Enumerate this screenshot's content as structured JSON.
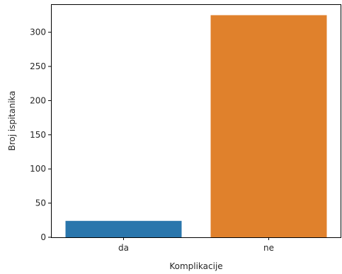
{
  "chart_data": {
    "type": "bar",
    "categories": [
      "da",
      "ne"
    ],
    "values": [
      24,
      325
    ],
    "colors": [
      "#1f77b4",
      "#ff7f0e"
    ],
    "bar_colors_rendered": [
      "#2a76ac",
      "#e0812c"
    ],
    "title": "",
    "xlabel": "Komplikacije",
    "ylabel": "Broj ispitanika",
    "ylim": [
      0,
      341
    ],
    "yticks": [
      0,
      50,
      100,
      150,
      200,
      250,
      300
    ],
    "grid": false,
    "legend": "none"
  }
}
